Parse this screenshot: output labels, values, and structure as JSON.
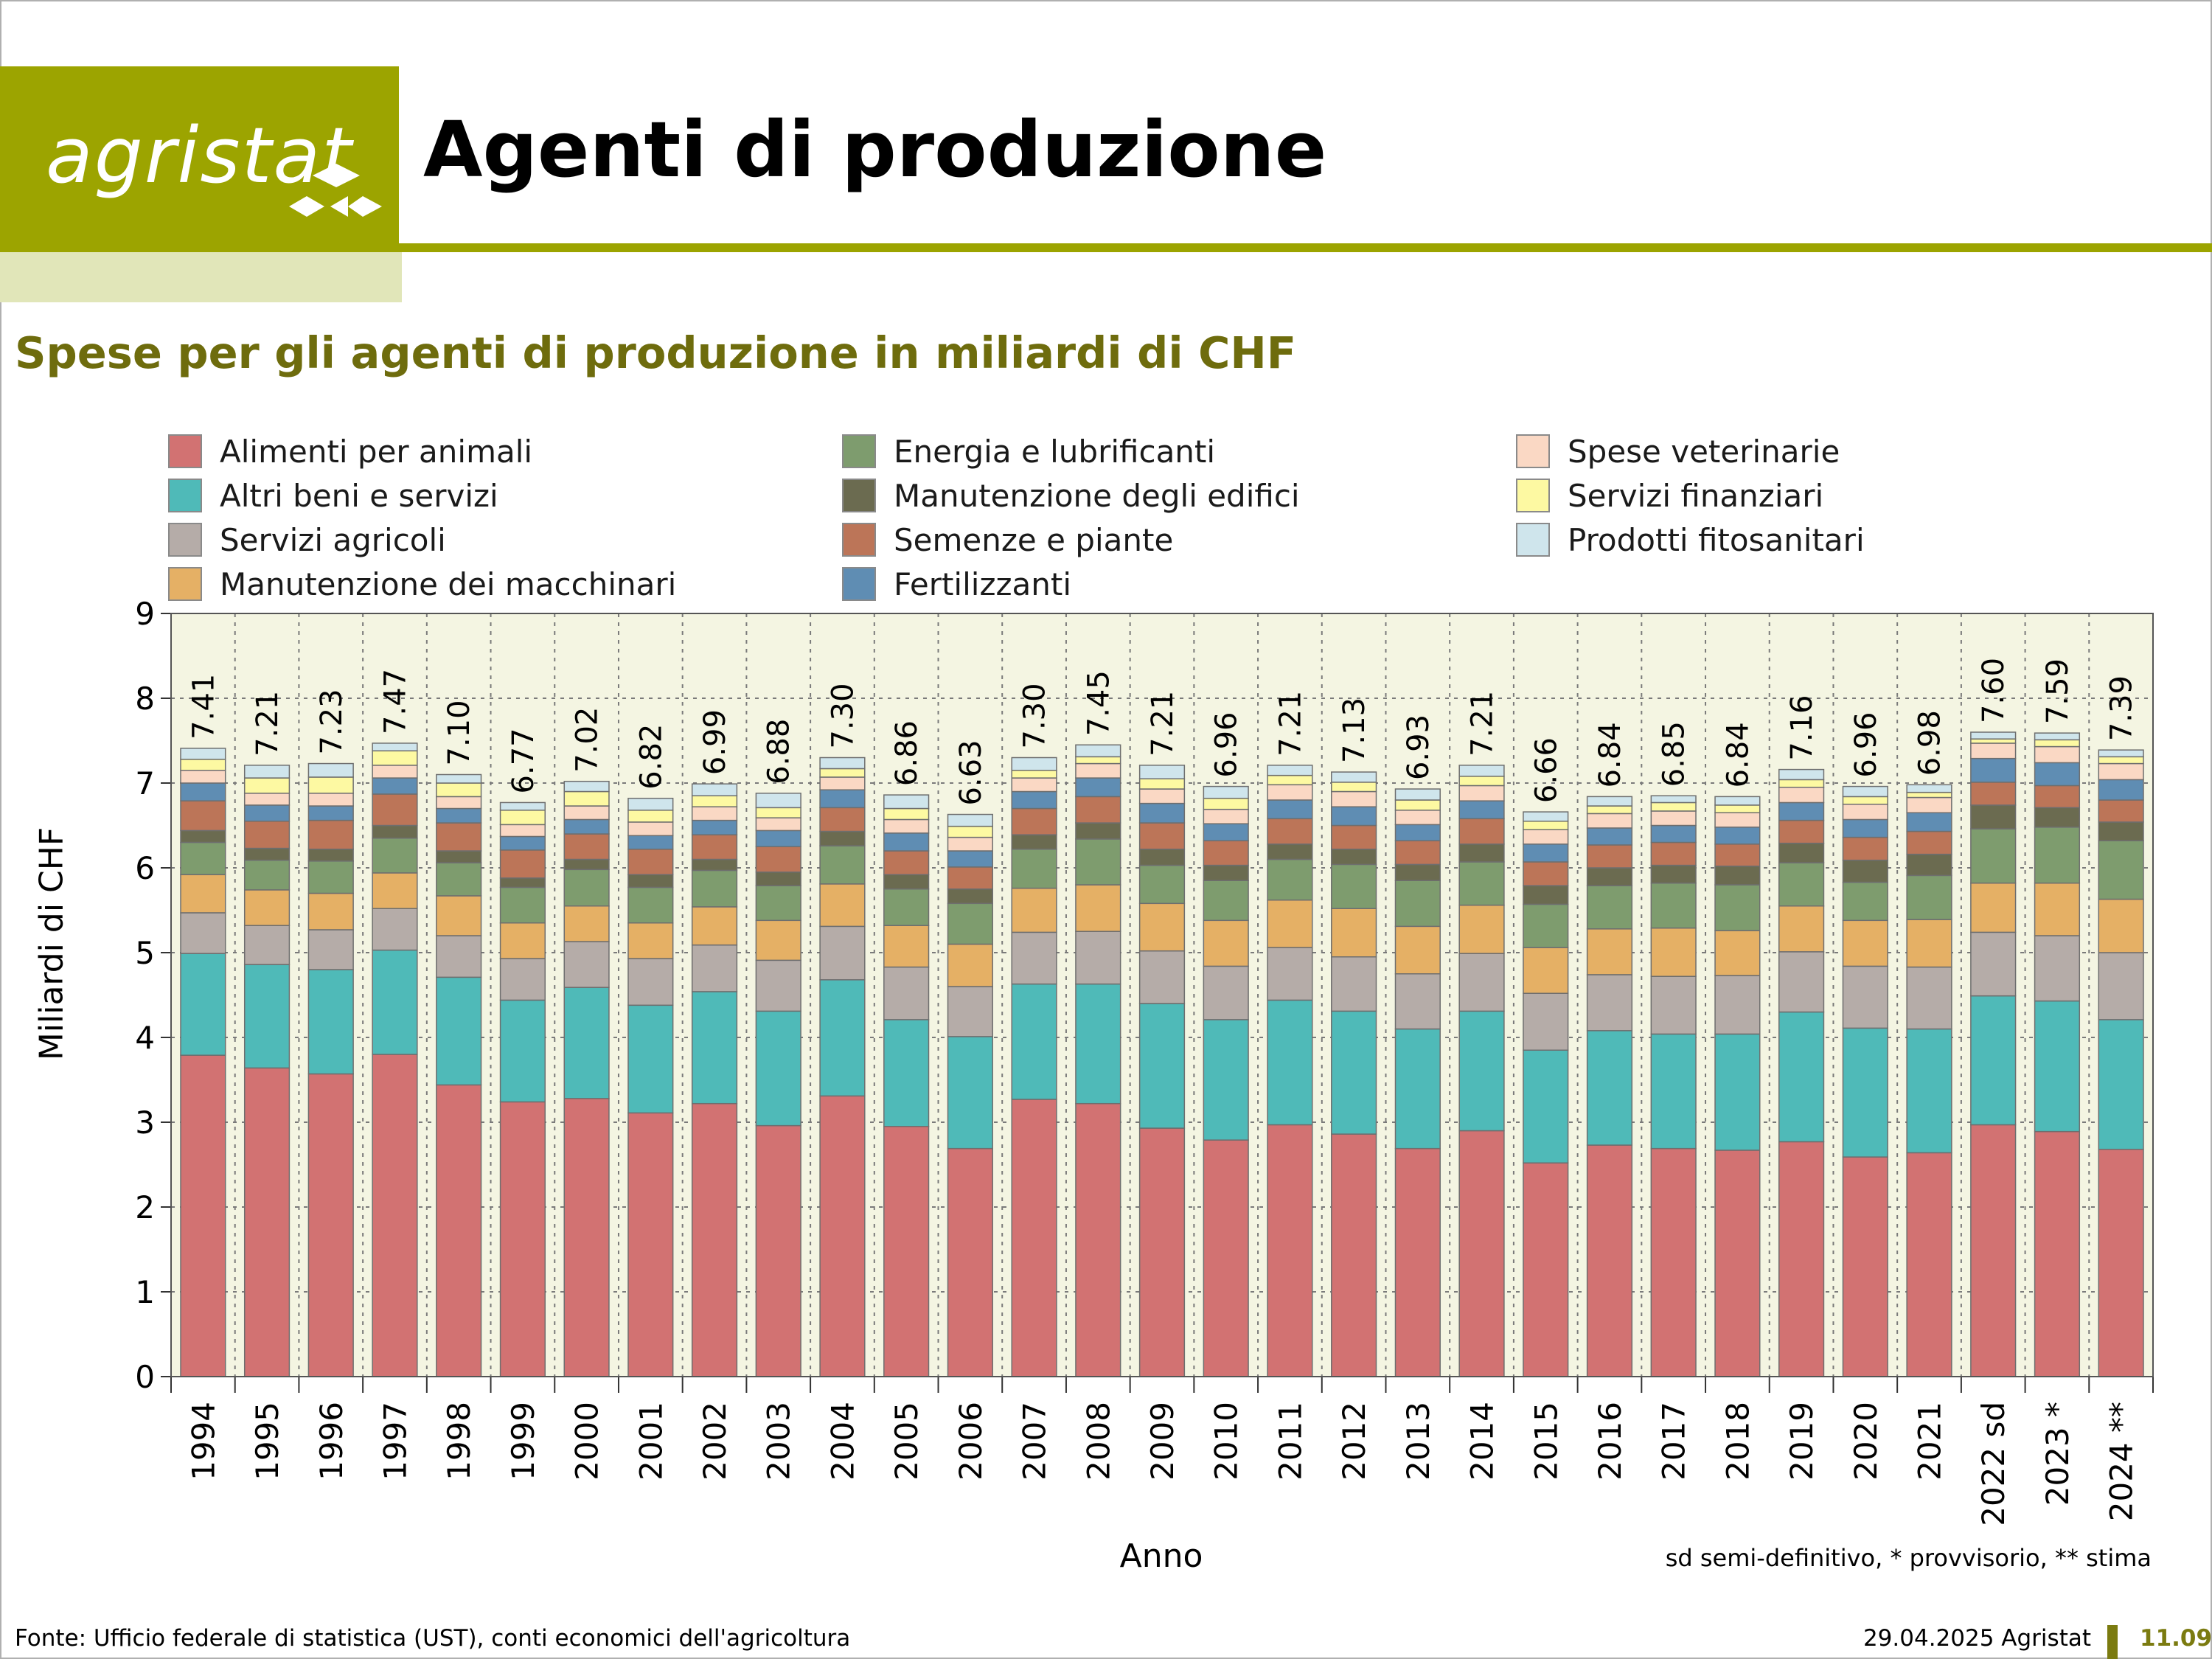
{
  "header": {
    "logo_text": "agristat",
    "title": "Agenti di produzione"
  },
  "subtitle": "Spese per gli agenti di produzione in miliardi di CHF",
  "footer": {
    "source": "Fonte: Ufficio federale di statistica (UST), conti economici dell'agricoltura",
    "date": "29.04.2025 Agristat",
    "page_number": "11.09"
  },
  "chart_data": {
    "type": "bar",
    "stacked": true,
    "xlabel": "Anno",
    "ylabel": "Miliardi di CHF",
    "ylim": [
      0,
      9
    ],
    "yticks": [
      0,
      1,
      2,
      3,
      4,
      5,
      6,
      7,
      8,
      9
    ],
    "grid": true,
    "legend_position": "top",
    "note": "sd semi-definitivo, * provvisorio, ** stima",
    "categories": [
      "1994",
      "1995",
      "1996",
      "1997",
      "1998",
      "1999",
      "2000",
      "2001",
      "2002",
      "2003",
      "2004",
      "2005",
      "2006",
      "2007",
      "2008",
      "2009",
      "2010",
      "2011",
      "2012",
      "2013",
      "2014",
      "2015",
      "2016",
      "2017",
      "2018",
      "2019",
      "2020",
      "2021",
      "2022 sd",
      "2023 *",
      "2024 **"
    ],
    "totals": [
      "7.41",
      "7.21",
      "7.23",
      "7.47",
      "7.10",
      "6.77",
      "7.02",
      "6.82",
      "6.99",
      "6.88",
      "7.30",
      "6.86",
      "6.63",
      "7.30",
      "7.45",
      "7.21",
      "6.96",
      "7.21",
      "7.13",
      "6.93",
      "7.21",
      "6.66",
      "6.84",
      "6.85",
      "6.84",
      "7.16",
      "6.96",
      "6.98",
      "7.60",
      "7.59",
      "7.39"
    ],
    "series": [
      {
        "name": "Alimenti per animali",
        "color": "#d27272",
        "values": [
          3.79,
          3.64,
          3.57,
          3.8,
          3.44,
          3.24,
          3.28,
          3.11,
          3.22,
          2.96,
          3.31,
          2.95,
          2.69,
          3.27,
          3.22,
          2.93,
          2.79,
          2.97,
          2.86,
          2.69,
          2.9,
          2.52,
          2.73,
          2.69,
          2.67,
          2.77,
          2.59,
          2.64,
          2.97,
          2.89,
          2.68
        ]
      },
      {
        "name": "Altri beni e servizi",
        "color": "#4fbab8",
        "values": [
          1.2,
          1.22,
          1.23,
          1.23,
          1.27,
          1.2,
          1.31,
          1.27,
          1.32,
          1.35,
          1.37,
          1.26,
          1.32,
          1.36,
          1.41,
          1.47,
          1.42,
          1.47,
          1.45,
          1.41,
          1.41,
          1.33,
          1.35,
          1.35,
          1.37,
          1.53,
          1.52,
          1.46,
          1.52,
          1.54,
          1.53
        ]
      },
      {
        "name": "Servizi agricoli",
        "color": "#b5aca8",
        "values": [
          0.48,
          0.46,
          0.47,
          0.49,
          0.49,
          0.49,
          0.54,
          0.55,
          0.55,
          0.6,
          0.63,
          0.62,
          0.59,
          0.61,
          0.62,
          0.62,
          0.63,
          0.62,
          0.64,
          0.65,
          0.68,
          0.67,
          0.66,
          0.68,
          0.69,
          0.71,
          0.73,
          0.73,
          0.75,
          0.77,
          0.79
        ]
      },
      {
        "name": "Manutenzione dei macchinari",
        "color": "#e5b065",
        "values": [
          0.45,
          0.42,
          0.43,
          0.42,
          0.47,
          0.42,
          0.42,
          0.42,
          0.45,
          0.47,
          0.5,
          0.49,
          0.5,
          0.52,
          0.55,
          0.56,
          0.54,
          0.56,
          0.57,
          0.56,
          0.57,
          0.54,
          0.54,
          0.57,
          0.53,
          0.54,
          0.54,
          0.56,
          0.58,
          0.62,
          0.63
        ]
      },
      {
        "name": "Energia e lubrificanti",
        "color": "#7e9c6e",
        "values": [
          0.38,
          0.35,
          0.38,
          0.41,
          0.39,
          0.42,
          0.43,
          0.42,
          0.43,
          0.41,
          0.45,
          0.43,
          0.48,
          0.46,
          0.54,
          0.45,
          0.47,
          0.48,
          0.52,
          0.54,
          0.51,
          0.51,
          0.51,
          0.53,
          0.54,
          0.51,
          0.45,
          0.52,
          0.64,
          0.66,
          0.69
        ]
      },
      {
        "name": "Manutenzione degli edifici",
        "color": "#6b6b50",
        "values": [
          0.14,
          0.14,
          0.14,
          0.15,
          0.14,
          0.11,
          0.12,
          0.15,
          0.13,
          0.16,
          0.17,
          0.17,
          0.17,
          0.17,
          0.19,
          0.19,
          0.18,
          0.18,
          0.18,
          0.19,
          0.21,
          0.22,
          0.21,
          0.21,
          0.22,
          0.23,
          0.26,
          0.25,
          0.28,
          0.23,
          0.22
        ]
      },
      {
        "name": "Semenze e piante",
        "color": "#bc7558",
        "values": [
          0.35,
          0.32,
          0.34,
          0.37,
          0.33,
          0.33,
          0.3,
          0.3,
          0.29,
          0.3,
          0.28,
          0.28,
          0.26,
          0.31,
          0.31,
          0.31,
          0.29,
          0.3,
          0.28,
          0.28,
          0.3,
          0.28,
          0.27,
          0.27,
          0.26,
          0.27,
          0.27,
          0.27,
          0.27,
          0.26,
          0.26
        ]
      },
      {
        "name": "Fertilizzanti",
        "color": "#5f8db3",
        "values": [
          0.21,
          0.19,
          0.17,
          0.19,
          0.17,
          0.16,
          0.17,
          0.16,
          0.17,
          0.19,
          0.21,
          0.21,
          0.19,
          0.2,
          0.22,
          0.23,
          0.2,
          0.22,
          0.22,
          0.19,
          0.21,
          0.21,
          0.2,
          0.2,
          0.2,
          0.21,
          0.21,
          0.22,
          0.28,
          0.27,
          0.24
        ]
      },
      {
        "name": "Spese veterinarie",
        "color": "#fad8c4",
        "values": [
          0.15,
          0.14,
          0.15,
          0.15,
          0.14,
          0.14,
          0.16,
          0.16,
          0.16,
          0.15,
          0.15,
          0.16,
          0.16,
          0.16,
          0.17,
          0.17,
          0.17,
          0.18,
          0.18,
          0.17,
          0.18,
          0.17,
          0.17,
          0.17,
          0.17,
          0.18,
          0.18,
          0.18,
          0.18,
          0.19,
          0.19
        ]
      },
      {
        "name": "Servizi finanziari",
        "color": "#fdf9a2",
        "values": [
          0.13,
          0.18,
          0.19,
          0.17,
          0.16,
          0.17,
          0.17,
          0.14,
          0.13,
          0.12,
          0.1,
          0.13,
          0.13,
          0.09,
          0.08,
          0.12,
          0.13,
          0.11,
          0.11,
          0.12,
          0.11,
          0.1,
          0.09,
          0.1,
          0.09,
          0.09,
          0.09,
          0.06,
          0.05,
          0.08,
          0.08
        ]
      },
      {
        "name": "Prodotti fitosanitari",
        "color": "#cfe5ec",
        "values": [
          0.13,
          0.15,
          0.16,
          0.09,
          0.1,
          0.09,
          0.12,
          0.14,
          0.14,
          0.17,
          0.13,
          0.16,
          0.14,
          0.15,
          0.14,
          0.16,
          0.14,
          0.12,
          0.12,
          0.13,
          0.13,
          0.11,
          0.11,
          0.08,
          0.1,
          0.12,
          0.12,
          0.09,
          0.08,
          0.08,
          0.08
        ]
      }
    ],
    "legend_order": [
      "Alimenti per animali",
      "Altri beni e servizi",
      "Servizi agricoli",
      "Manutenzione dei macchinari",
      "Energia e lubrificanti",
      "Manutenzione degli edifici",
      "Semenze e piante",
      "Fertilizzanti",
      "Spese veterinarie",
      "Servizi finanziari",
      "Prodotti fitosanitari"
    ]
  }
}
